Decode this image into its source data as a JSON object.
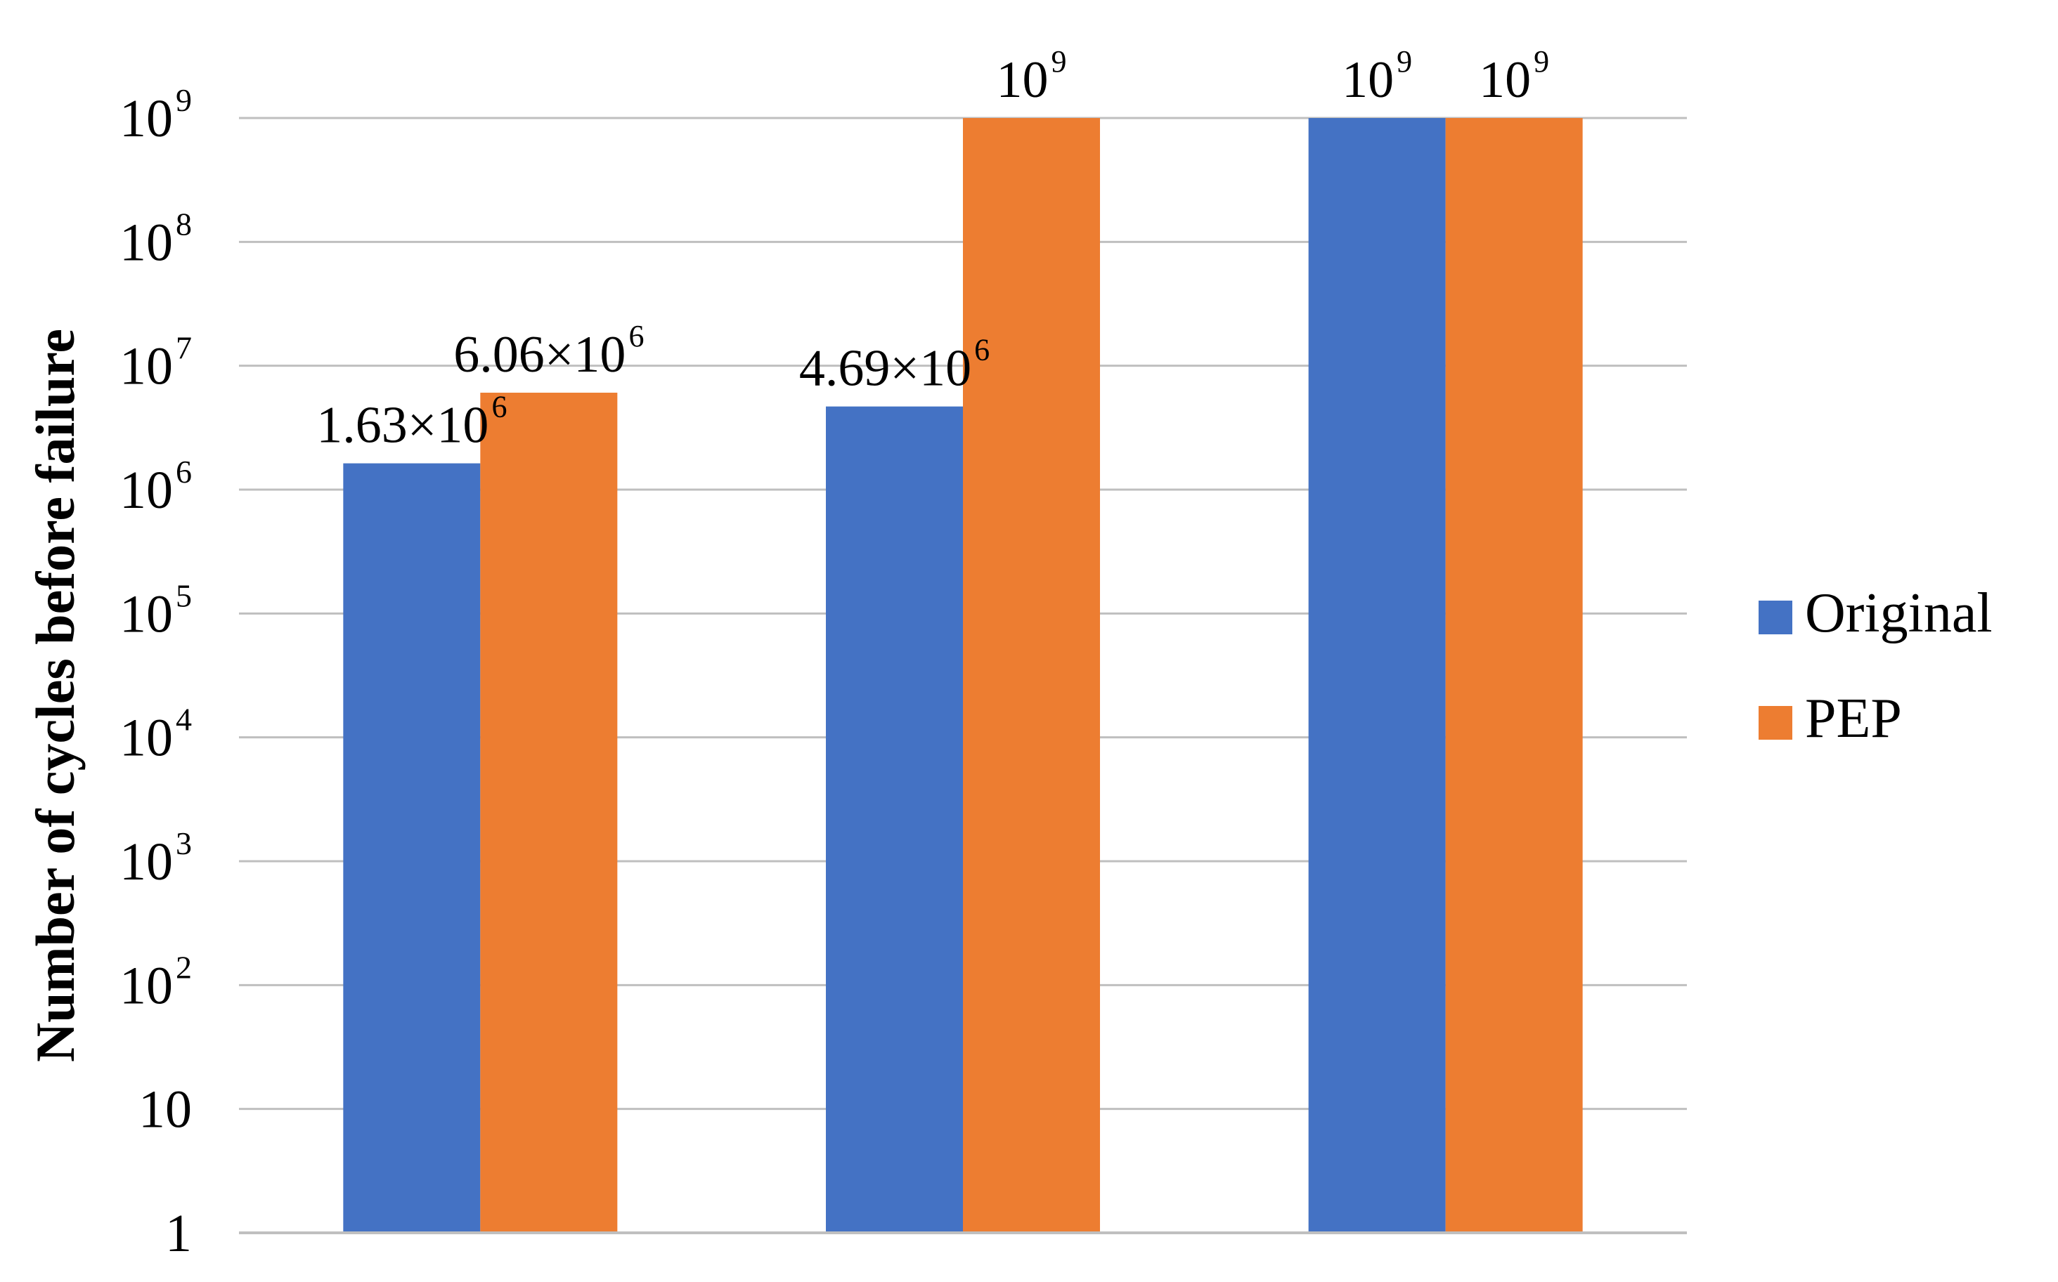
{
  "chart_data": {
    "type": "bar",
    "scale": "log",
    "categories": [
      "",
      "",
      ""
    ],
    "series": [
      {
        "name": "Original",
        "color": "#4472C4",
        "values": [
          1630000,
          4690000,
          1000000000
        ]
      },
      {
        "name": "PEP",
        "color": "#ED7D31",
        "values": [
          6060000,
          1000000000,
          1000000000
        ]
      }
    ],
    "data_labels": [
      [
        {
          "mantissa": "1.63×10",
          "exp": "6"
        },
        {
          "mantissa": "4.69×10",
          "exp": "6"
        },
        {
          "mantissa": "10",
          "exp": "9"
        }
      ],
      [
        {
          "mantissa": "6.06×10",
          "exp": "6"
        },
        {
          "mantissa": "10",
          "exp": "9"
        },
        {
          "mantissa": "10",
          "exp": "9"
        }
      ]
    ],
    "ylabel": "Number of cycles before failure",
    "ylim": [
      1,
      1000000000
    ],
    "y_ticks": [
      {
        "base": "1",
        "exp": ""
      },
      {
        "base": "10",
        "exp": ""
      },
      {
        "base": "10",
        "exp": "2"
      },
      {
        "base": "10",
        "exp": "3"
      },
      {
        "base": "10",
        "exp": "4"
      },
      {
        "base": "10",
        "exp": "5"
      },
      {
        "base": "10",
        "exp": "6"
      },
      {
        "base": "10",
        "exp": "7"
      },
      {
        "base": "10",
        "exp": "8"
      },
      {
        "base": "10",
        "exp": "9"
      }
    ],
    "grid": true,
    "legend": "right"
  }
}
